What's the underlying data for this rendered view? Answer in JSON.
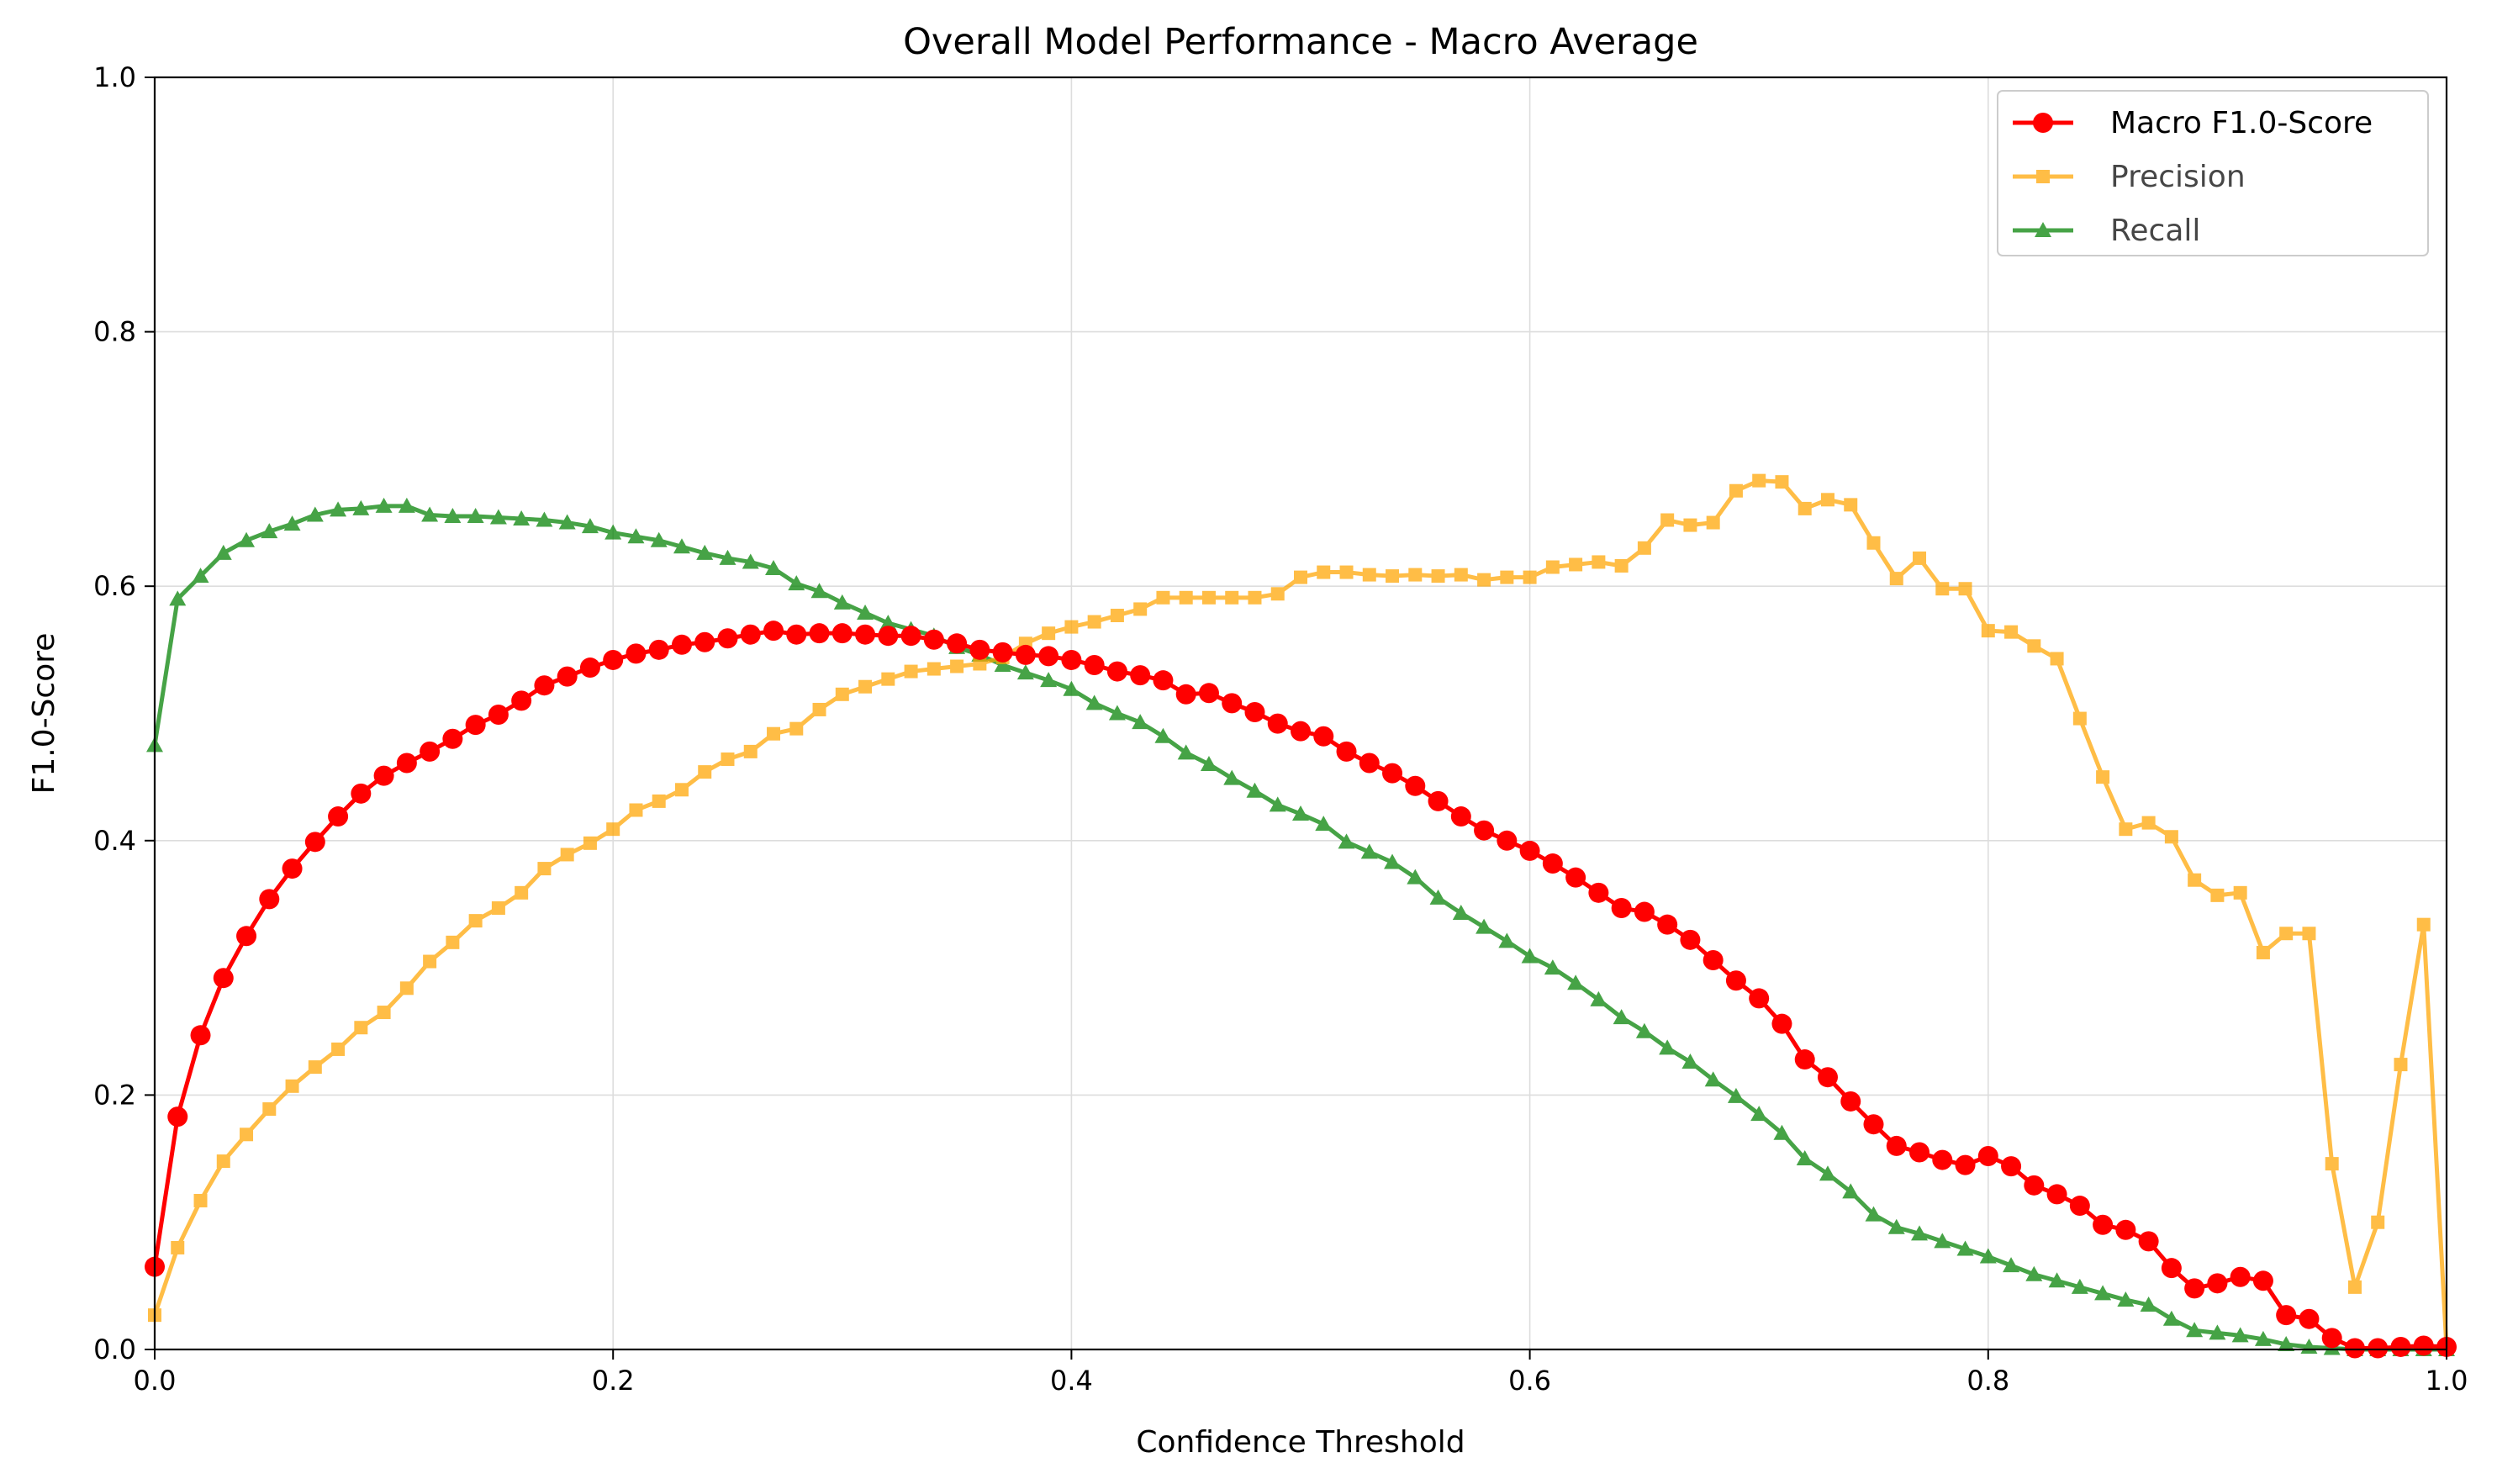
{
  "chart_data": {
    "type": "line",
    "title": "Overall Model Performance - Macro Average",
    "xlabel": "Confidence Threshold",
    "ylabel": "F1.0-Score",
    "xlim": [
      0,
      1
    ],
    "ylim": [
      0,
      1
    ],
    "x_ticks": [
      "0.0",
      "0.2",
      "0.4",
      "0.6",
      "0.8",
      "1.0"
    ],
    "y_ticks": [
      "0.0",
      "0.2",
      "0.4",
      "0.6",
      "0.8",
      "1.0"
    ],
    "grid": true,
    "legend_position": "top-right",
    "x": [
      0.0,
      0.01,
      0.02,
      0.03,
      0.04,
      0.05,
      0.06,
      0.07,
      0.08,
      0.09,
      0.1,
      0.11,
      0.12,
      0.13,
      0.14,
      0.15,
      0.16,
      0.17,
      0.18,
      0.19,
      0.2,
      0.21,
      0.22,
      0.23,
      0.24,
      0.25,
      0.26,
      0.27,
      0.28,
      0.29,
      0.3,
      0.31,
      0.32,
      0.33,
      0.34,
      0.35,
      0.36,
      0.37,
      0.38,
      0.39,
      0.4,
      0.41,
      0.42,
      0.43,
      0.44,
      0.45,
      0.46,
      0.47,
      0.48,
      0.49,
      0.5,
      0.51,
      0.52,
      0.53,
      0.54,
      0.55,
      0.56,
      0.57,
      0.58,
      0.59,
      0.6,
      0.61,
      0.62,
      0.63,
      0.64,
      0.65,
      0.66,
      0.67,
      0.68,
      0.69,
      0.7,
      0.71,
      0.72,
      0.73,
      0.74,
      0.75,
      0.76,
      0.77,
      0.78,
      0.79,
      0.8,
      0.81,
      0.82,
      0.83,
      0.84,
      0.85,
      0.86,
      0.87,
      0.88,
      0.89,
      0.9,
      0.91,
      0.92,
      0.93,
      0.94,
      0.95,
      0.96,
      0.97,
      0.98,
      0.99,
      1.0
    ],
    "series": [
      {
        "name": "Macro F1.0-Score",
        "color": "#ff0000",
        "marker": "circle",
        "values": [
          0.065,
          0.183,
          0.247,
          0.292,
          0.325,
          0.354,
          0.378,
          0.399,
          0.419,
          0.437,
          0.451,
          0.461,
          0.47,
          0.48,
          0.491,
          0.499,
          0.51,
          0.522,
          0.529,
          0.536,
          0.542,
          0.547,
          0.55,
          0.554,
          0.556,
          0.559,
          0.562,
          0.565,
          0.562,
          0.563,
          0.563,
          0.562,
          0.561,
          0.561,
          0.558,
          0.555,
          0.55,
          0.548,
          0.546,
          0.545,
          0.542,
          0.538,
          0.533,
          0.53,
          0.526,
          0.515,
          0.516,
          0.508,
          0.501,
          0.492,
          0.486,
          0.482,
          0.47,
          0.461,
          0.453,
          0.443,
          0.431,
          0.419,
          0.408,
          0.4,
          0.392,
          0.382,
          0.371,
          0.359,
          0.347,
          0.344,
          0.334,
          0.322,
          0.306,
          0.29,
          0.276,
          0.256,
          0.228,
          0.214,
          0.195,
          0.177,
          0.16,
          0.155,
          0.149,
          0.145,
          0.152,
          0.144,
          0.129,
          0.122,
          0.113,
          0.098,
          0.094,
          0.085,
          0.064,
          0.048,
          0.052,
          0.057,
          0.054,
          0.027,
          0.024,
          0.009,
          0.001,
          0.001,
          0.002,
          0.003,
          0.002
        ]
      },
      {
        "name": "Precision",
        "color": "#ffa500",
        "marker": "square",
        "values": [
          0.027,
          0.08,
          0.117,
          0.148,
          0.169,
          0.189,
          0.207,
          0.222,
          0.236,
          0.253,
          0.265,
          0.284,
          0.305,
          0.32,
          0.337,
          0.347,
          0.359,
          0.378,
          0.389,
          0.398,
          0.409,
          0.424,
          0.431,
          0.44,
          0.454,
          0.464,
          0.47,
          0.484,
          0.488,
          0.503,
          0.515,
          0.521,
          0.527,
          0.533,
          0.535,
          0.537,
          0.539,
          0.544,
          0.555,
          0.563,
          0.568,
          0.572,
          0.577,
          0.582,
          0.591,
          0.591,
          0.591,
          0.591,
          0.591,
          0.594,
          0.607,
          0.611,
          0.611,
          0.609,
          0.608,
          0.609,
          0.608,
          0.609,
          0.605,
          0.607,
          0.607,
          0.615,
          0.617,
          0.619,
          0.616,
          0.63,
          0.652,
          0.648,
          0.65,
          0.675,
          0.683,
          0.682,
          0.661,
          0.668,
          0.664,
          0.634,
          0.606,
          0.622,
          0.598,
          0.598,
          0.565,
          0.564,
          0.553,
          0.543,
          0.496,
          0.45,
          0.409,
          0.414,
          0.403,
          0.369,
          0.357,
          0.359,
          0.312,
          0.327,
          0.327,
          0.146,
          0.049,
          0.1,
          0.224,
          0.334,
          0.001
        ]
      },
      {
        "name": "Recall",
        "color": "#008000",
        "marker": "triangle",
        "values": [
          0.475,
          0.59,
          0.608,
          0.626,
          0.636,
          0.643,
          0.649,
          0.656,
          0.66,
          0.661,
          0.663,
          0.663,
          0.656,
          0.655,
          0.655,
          0.654,
          0.653,
          0.652,
          0.65,
          0.647,
          0.642,
          0.639,
          0.636,
          0.631,
          0.626,
          0.622,
          0.619,
          0.614,
          0.602,
          0.596,
          0.587,
          0.579,
          0.571,
          0.566,
          0.561,
          0.552,
          0.546,
          0.538,
          0.532,
          0.526,
          0.519,
          0.508,
          0.5,
          0.493,
          0.482,
          0.469,
          0.46,
          0.449,
          0.439,
          0.428,
          0.421,
          0.413,
          0.399,
          0.391,
          0.383,
          0.371,
          0.355,
          0.343,
          0.332,
          0.321,
          0.309,
          0.3,
          0.288,
          0.275,
          0.261,
          0.25,
          0.237,
          0.226,
          0.212,
          0.199,
          0.185,
          0.17,
          0.15,
          0.138,
          0.124,
          0.106,
          0.096,
          0.091,
          0.085,
          0.079,
          0.073,
          0.066,
          0.059,
          0.054,
          0.049,
          0.044,
          0.039,
          0.035,
          0.024,
          0.015,
          0.013,
          0.011,
          0.008,
          0.004,
          0.002,
          0.001,
          0.0,
          0.0,
          0.0,
          0.0,
          0.0
        ]
      }
    ]
  }
}
